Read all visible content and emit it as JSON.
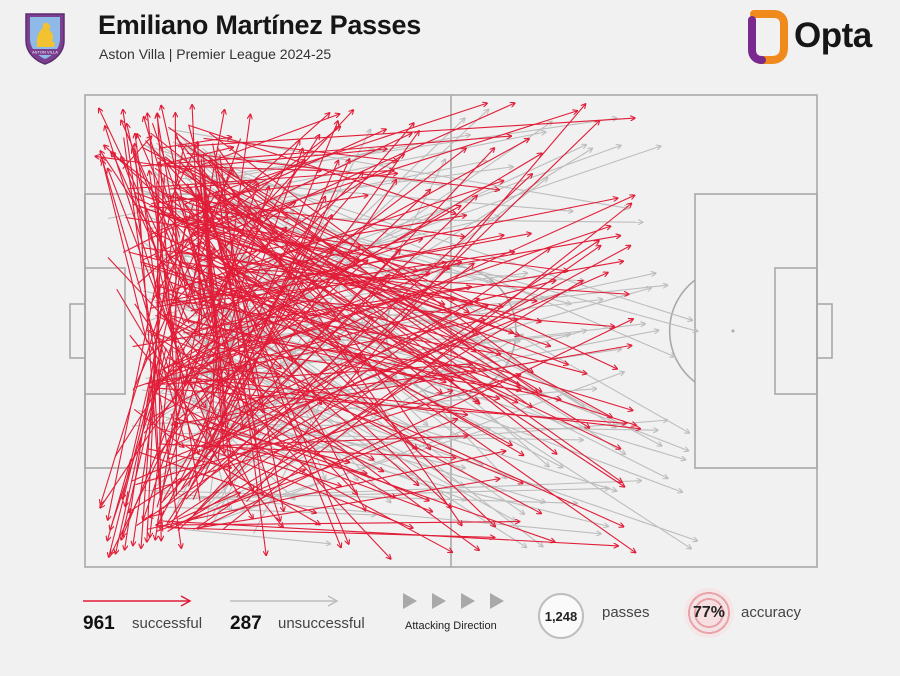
{
  "header": {
    "title": "Emiliano Martínez Passes",
    "subtitle": "Aston Villa | Premier League 2024-25",
    "club_crest_text": "ASTON VILLA",
    "brand": "Opta"
  },
  "colors": {
    "successful": "#e11d38",
    "unsuccessful": "#bdbdbd",
    "pitch_lines": "#a9a9a9",
    "background": "#f1f1f1",
    "crest_body": "#7b3f8f",
    "crest_lion": "#f2c230",
    "opta_orange": "#f08a1c",
    "opta_purple": "#7a2a8e"
  },
  "legend": {
    "successful_count": "961",
    "successful_label": "successful",
    "unsuccessful_count": "287",
    "unsuccessful_label": "unsuccessful",
    "direction_label": "Attacking Direction",
    "passes_total": "1,248",
    "passes_label": "passes",
    "accuracy_value": "77%",
    "accuracy_label": "accuracy"
  },
  "chart_data": {
    "type": "pass-map",
    "pitch": {
      "length": 105,
      "width": 68,
      "attacking_direction": "left-to-right"
    },
    "origin_zone": {
      "x_range": [
        0,
        30
      ],
      "y_range": [
        0,
        68
      ]
    },
    "successful_passes": 961,
    "unsuccessful_passes": 287,
    "total_passes": 1248,
    "accuracy_pct": 77,
    "arrows_drawn_in_sample": {
      "successful": 300,
      "unsuccessful": 120
    },
    "successful_end_x_range": [
      1,
      80
    ],
    "unsuccessful_end_x_range": [
      20,
      88
    ]
  }
}
